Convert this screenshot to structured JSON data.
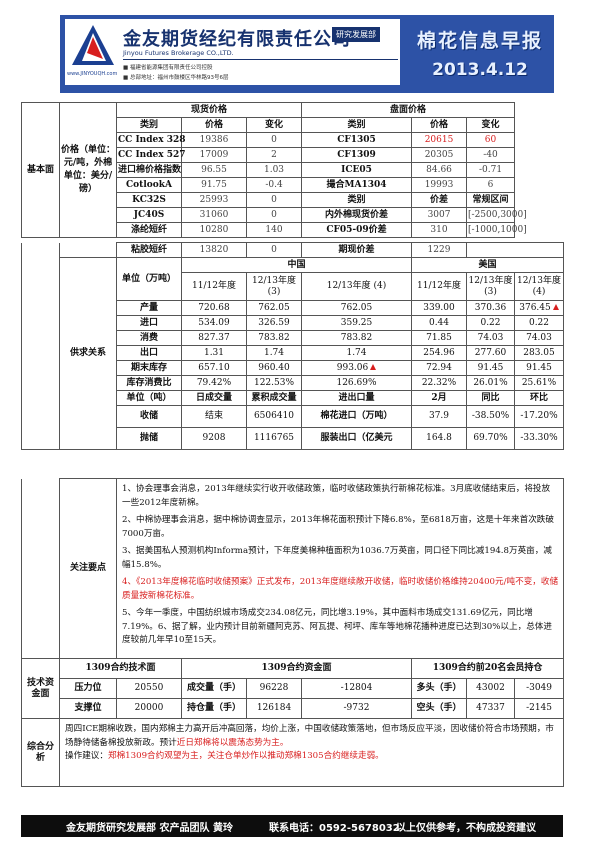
{
  "header": {
    "logo_url": "www.JINYOUQH.com",
    "company_name": "金友期货经纪有限责任公司",
    "dept_badge": "研究发展部",
    "company_en": "Jinyou Futures Brokerage CO.,LTD.",
    "info1": "■ 福建省能源集团有限责任公司控股",
    "info2": "■ 总部地址：福州市鼓楼区华林路93号6层",
    "report_title": "棉花信息早报",
    "report_date": "2013.4.12"
  },
  "left_label": "基本面",
  "price": {
    "label": "价格（单位：元/吨，外棉单位：美分/磅）",
    "spot_header": "现货价格",
    "futures_header": "盘面价格",
    "col_type": "类别",
    "col_price": "价格",
    "col_change": "变化",
    "rows": [
      {
        "s_name": "CC Index 328",
        "s_price": "19386",
        "s_chg": "0",
        "f_name": "CF1305",
        "f_price": "20615",
        "f_chg": "60"
      },
      {
        "s_name": "CC Index 527",
        "s_price": "17009",
        "s_chg": "2",
        "f_name": "CF1309",
        "f_price": "20305",
        "f_chg": "-40"
      },
      {
        "s_name": "进口棉价格指数",
        "s_price": "96.55",
        "s_chg": "1.03",
        "f_name": "ICE05",
        "f_price": "84.66",
        "f_chg": "-0.71"
      },
      {
        "s_name": "CotlookA",
        "s_price": "91.75",
        "s_chg": "-0.4",
        "f_name": "撮合MA1304",
        "f_price": "19993",
        "f_chg": "6"
      },
      {
        "s_name": "KC32S",
        "s_price": "25993",
        "s_chg": "0",
        "f_name": "类别",
        "f_price": "价差",
        "f_chg": "常规区间"
      },
      {
        "s_name": "JC40S",
        "s_price": "31060",
        "s_chg": "0",
        "f_name": "内外棉现货价差",
        "f_price": "3007",
        "f_chg": "[-2500,3000]"
      },
      {
        "s_name": "涤纶短纤",
        "s_price": "10280",
        "s_chg": "140",
        "f_name": "CF05-09价差",
        "f_price": "310",
        "f_chg": "[-1000,1000]"
      },
      {
        "s_name": "粘胶短纤",
        "s_price": "13820",
        "s_chg": "0",
        "f_name": "期现价差",
        "f_price": "1229",
        "f_chg": ""
      }
    ]
  },
  "supply": {
    "label": "供求关系",
    "china": "中国",
    "usa": "美国",
    "unit": "单位（万吨）",
    "cols": [
      "11/12年度",
      "12/13年度(3)",
      "12/13年度 (4)",
      "11/12年度",
      "12/13年度(3)",
      "12/13年度 (4)"
    ],
    "rows": [
      {
        "name": "产量",
        "v": [
          "720.68",
          "762.05",
          "762.05",
          "339.00",
          "370.36",
          "376.45"
        ]
      },
      {
        "name": "进口",
        "v": [
          "534.09",
          "326.59",
          "359.25",
          "0.44",
          "0.22",
          "0.22"
        ]
      },
      {
        "name": "消费",
        "v": [
          "827.37",
          "783.82",
          "783.82",
          "71.85",
          "74.03",
          "74.03"
        ]
      },
      {
        "name": "出口",
        "v": [
          "1.31",
          "1.74",
          "1.74",
          "254.96",
          "277.60",
          "283.05"
        ]
      },
      {
        "name": "期末库存",
        "v": [
          "657.10",
          "960.40",
          "993.06",
          "72.94",
          "91.45",
          "91.45"
        ]
      },
      {
        "name": "库存消费比",
        "v": [
          "79.42%",
          "122.53%",
          "126.69%",
          "22.32%",
          "26.01%",
          "25.61%"
        ]
      }
    ],
    "sub_header": [
      "单位（吨）",
      "日成交量",
      "累积成交量",
      "进出口量",
      "2月",
      "同比",
      "环比"
    ],
    "r1": [
      "收储",
      "结束",
      "6506410",
      "棉花进口（万吨）",
      "37.9",
      "-38.50%",
      "-17.20%"
    ],
    "r2": [
      "抛储",
      "9208",
      "1116765",
      "服装出口（亿美元",
      "164.8",
      "69.70%",
      "-33.30%"
    ]
  },
  "news": {
    "label": "关注要点",
    "items": [
      "1、协会理事会消息，2013年继续实行收开收储政策，临时收储政策执行新棉花标准。3月底收储结束后，将投放一些2012年度新棉。",
      "2、中棉协理事会消息，据中棉协调查显示，2013年棉花面积预计下降6.8%，至6818万亩，这是十年来首次跌破7000万亩。",
      "3、据美国私人预测机构Informa预计，下年度美棉种植面积为1036.7万英亩，同口径下同比减194.8万英亩，减幅15.8%。",
      "4、《2013年度棉花临时收储预案》正式发布，2013年度继续敞开收储，临时收储价格维持20400元/吨不变，收储质量按新棉花标准。",
      "5、今年一季度，中国纺织城市场成交234.08亿元，同比增3.19%，其中面料市场成交131.69亿元，同比增7.19%。6、据了解，业内预计目前新疆阿克苏、阿瓦提、柯坪、库车等地棉花播种进度已达到30%以上，总体进度较前几年早10至15天。"
    ]
  },
  "tech": {
    "label": "技术资金面",
    "h1": "1309合约技术面",
    "h2": "1309合约资金面",
    "h3": "1309合约前20名会员持仓",
    "r1": [
      "压力位",
      "20550",
      "成交量（手）",
      "96228",
      "-12804",
      "多头（手）",
      "43002",
      "-3049"
    ],
    "r2": [
      "支撑位",
      "20000",
      "持仓量（手）",
      "126184",
      "-9732",
      "空头（手）",
      "47337",
      "-2145"
    ]
  },
  "summary": {
    "label": "综合分析",
    "text_a": "周四ICE期棉收跌，国内郑棉主力高开后冲高回落，均价上涨，中国收储政策落地，但市场反应平淡，因收储价符合市场预期，市场静待储备棉投放新政。预计",
    "text_b": "近日郑棉将以震荡态势为主。",
    "text_c": "操作建议：",
    "text_d": "郑棉1309合约观望为主，关注仓单炒作以推动郑棉1305合约继续走弱。"
  },
  "footer": {
    "left": "金友期货研究发展部 农产品团队 黄玲",
    "phone": "联系电话：0592-5678032",
    "right": "以上仅供参考，不构成投资建议"
  },
  "colors": {
    "brand": "#2d52a6",
    "red": "#d81e1e"
  }
}
